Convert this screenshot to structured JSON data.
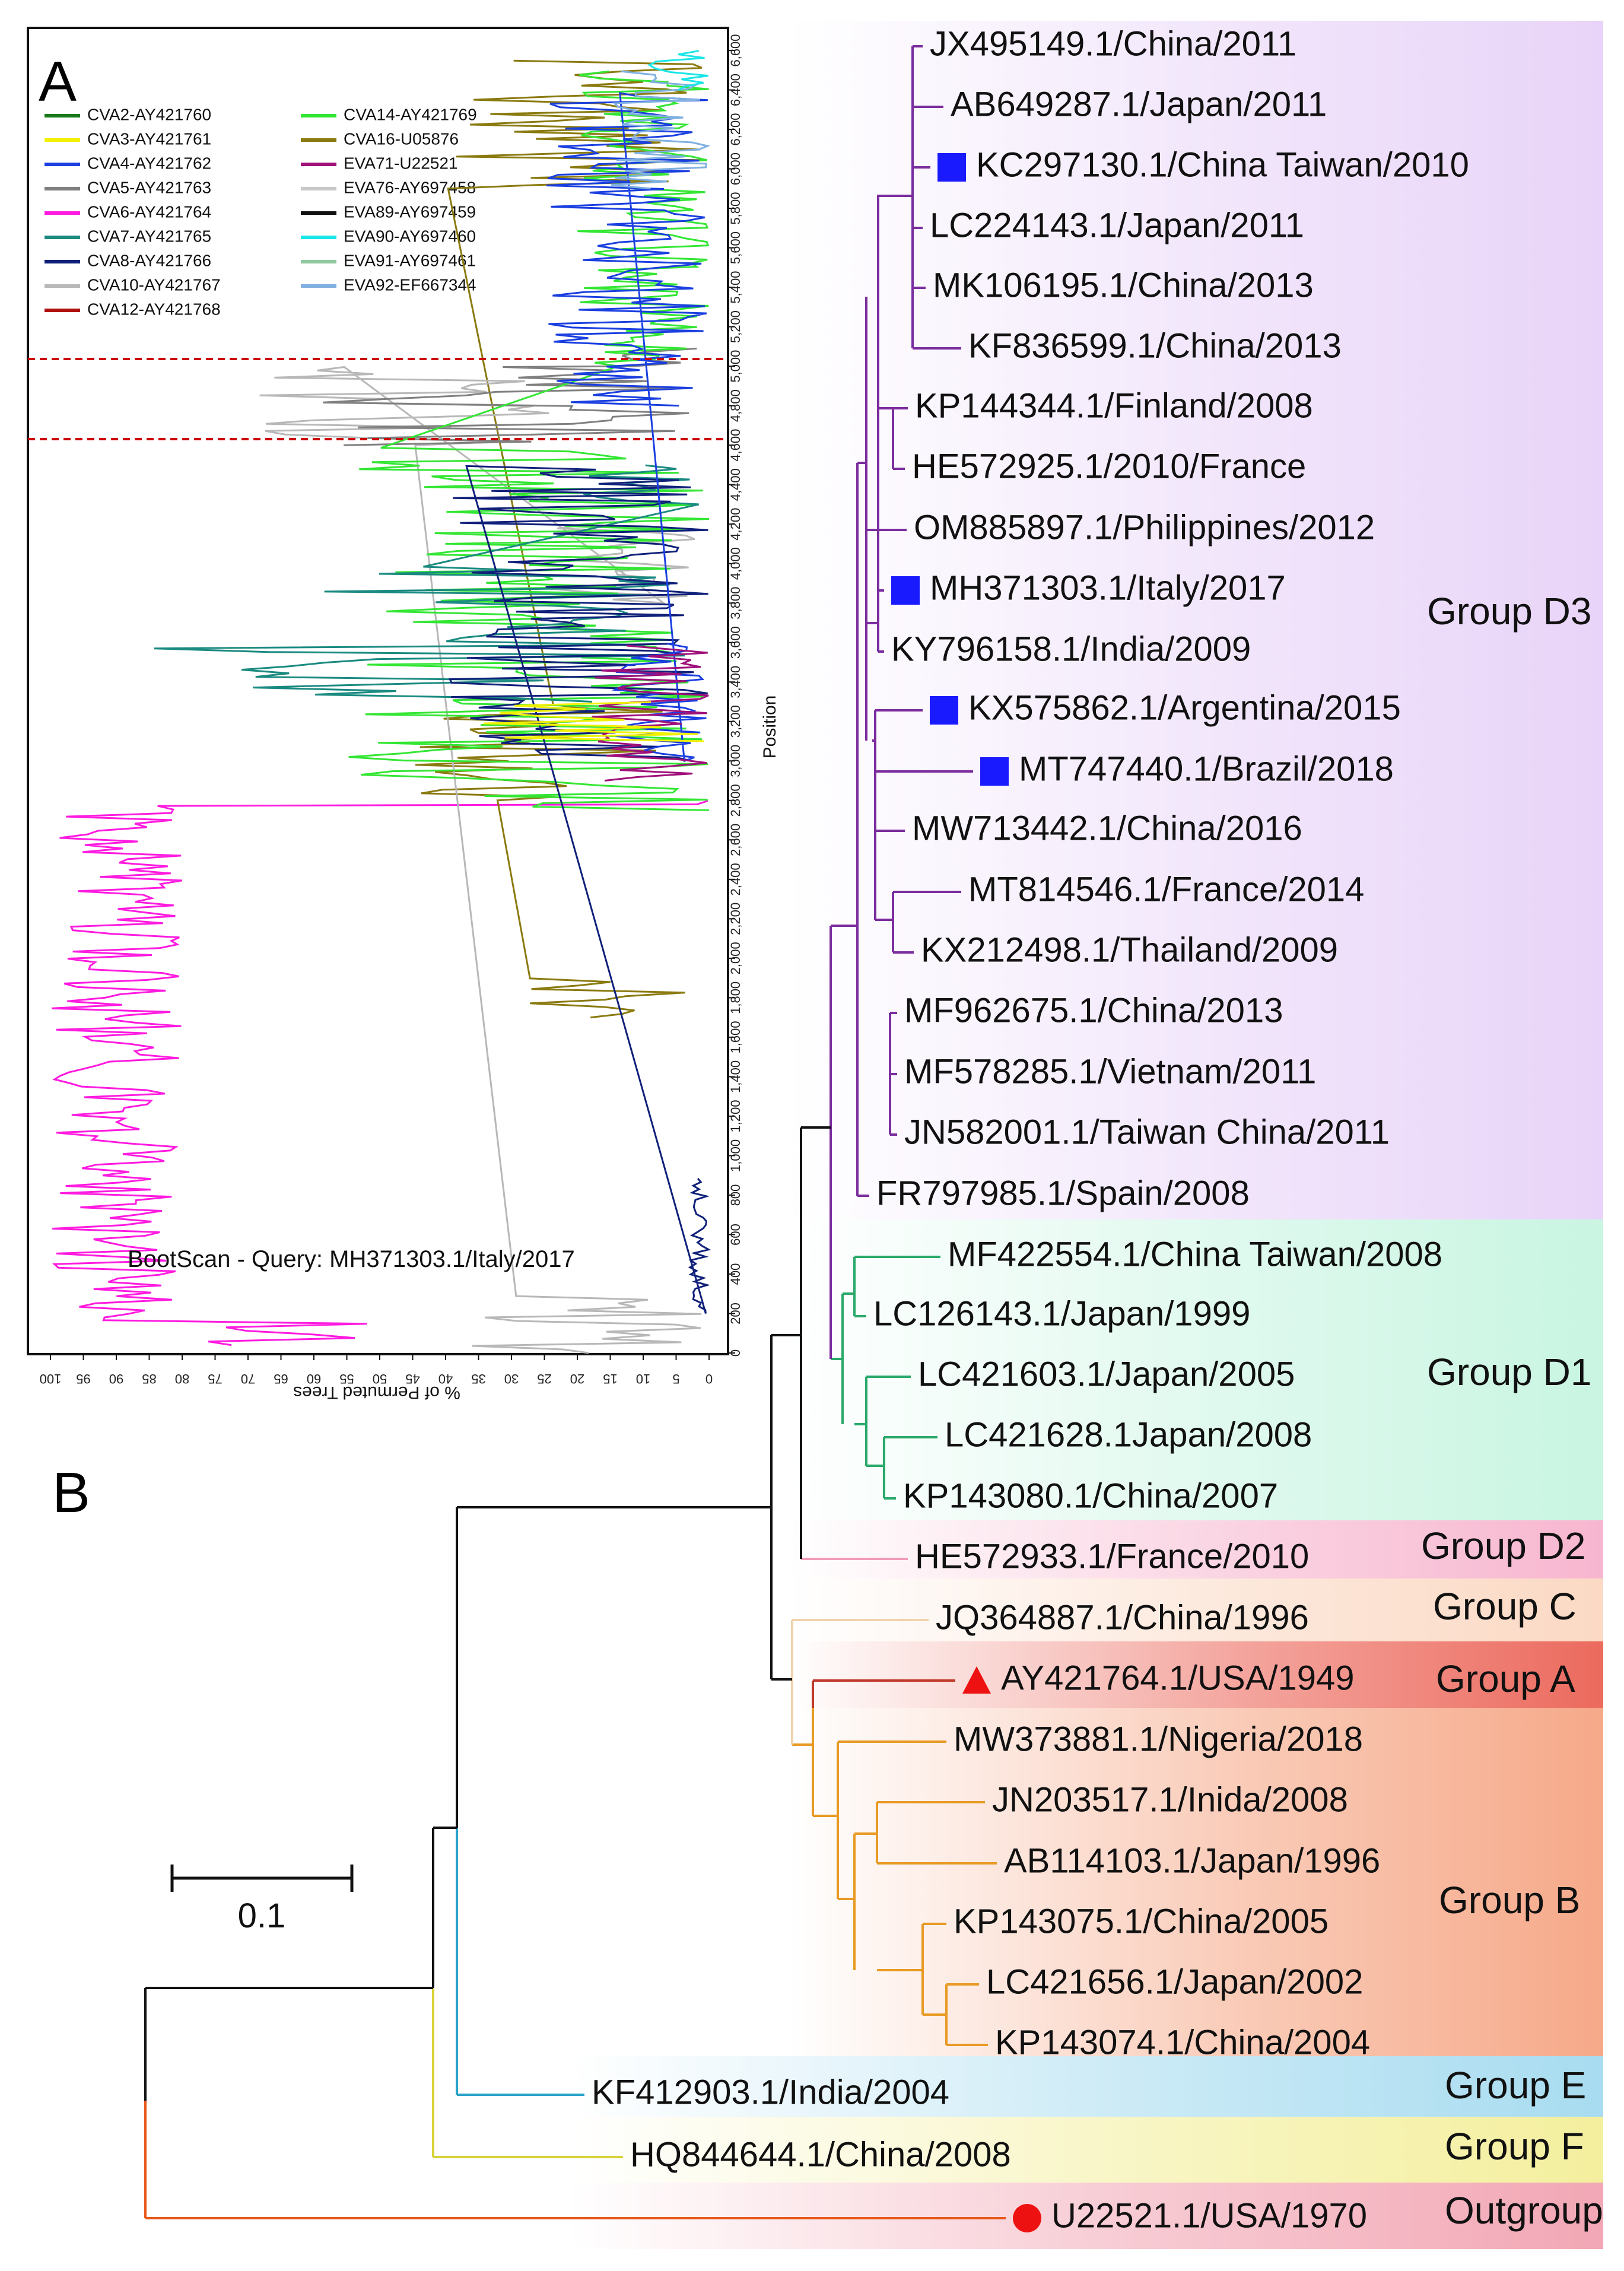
{
  "panel_b": {
    "letter": "B",
    "scale_bar": "0.1",
    "leaves": [
      {
        "id": "jx",
        "label": "JX495149.1/China/2011",
        "marker": ""
      },
      {
        "id": "ab6",
        "label": "AB649287.1/Japan/2011",
        "marker": ""
      },
      {
        "id": "kc2",
        "label": "KC297130.1/China Taiwan/2010",
        "marker": "square"
      },
      {
        "id": "lc2",
        "label": "LC224143.1/Japan/2011",
        "marker": ""
      },
      {
        "id": "mk1",
        "label": "MK106195.1/China/2013",
        "marker": ""
      },
      {
        "id": "kf8",
        "label": "KF836599.1/China/2013",
        "marker": ""
      },
      {
        "id": "kp1",
        "label": "KP144344.1/Finland/2008",
        "marker": ""
      },
      {
        "id": "he5",
        "label": "HE572925.1/2010/France",
        "marker": ""
      },
      {
        "id": "om8",
        "label": "OM885897.1/Philippines/2012",
        "marker": ""
      },
      {
        "id": "mh3",
        "label": "MH371303.1/Italy/2017",
        "marker": "square"
      },
      {
        "id": "ky7",
        "label": "KY796158.1/India/2009",
        "marker": ""
      },
      {
        "id": "kx5",
        "label": "KX575862.1/Argentina/2015",
        "marker": "square"
      },
      {
        "id": "mt7",
        "label": "MT747440.1/Brazil/2018",
        "marker": "square"
      },
      {
        "id": "mw7",
        "label": "MW713442.1/China/2016",
        "marker": ""
      },
      {
        "id": "mt8",
        "label": "MT814546.1/France/2014",
        "marker": ""
      },
      {
        "id": "kx2",
        "label": "KX212498.1/Thailand/2009",
        "marker": ""
      },
      {
        "id": "mf9",
        "label": "MF962675.1/China/2013",
        "marker": ""
      },
      {
        "id": "mf5",
        "label": "MF578285.1/Vietnam/2011",
        "marker": ""
      },
      {
        "id": "jn5",
        "label": "JN582001.1/Taiwan China/2011",
        "marker": ""
      },
      {
        "id": "fr7",
        "label": "FR797985.1/Spain/2008",
        "marker": ""
      },
      {
        "id": "mf4",
        "label": "MF422554.1/China Taiwan/2008",
        "marker": ""
      },
      {
        "id": "lc1",
        "label": "LC126143.1/Japan/1999",
        "marker": ""
      },
      {
        "id": "lc4a",
        "label": "LC421603.1/Japan/2005",
        "marker": ""
      },
      {
        "id": "lc4b",
        "label": "LC421628.1Japan/2008",
        "marker": ""
      },
      {
        "id": "kp0",
        "label": "KP143080.1/China/2007",
        "marker": ""
      },
      {
        "id": "he3",
        "label": "HE572933.1/France/2010",
        "marker": ""
      },
      {
        "id": "jq3",
        "label": "JQ364887.1/China/1996",
        "marker": ""
      },
      {
        "id": "ay4",
        "label": "AY421764.1/USA/1949",
        "marker": "triangle"
      },
      {
        "id": "mw3",
        "label": "MW373881.1/Nigeria/2018",
        "marker": ""
      },
      {
        "id": "jn2",
        "label": "JN203517.1/Inida/2008",
        "marker": ""
      },
      {
        "id": "ab1",
        "label": "AB114103.1/Japan/1996",
        "marker": ""
      },
      {
        "id": "kp5",
        "label": "KP143075.1/China/2005",
        "marker": ""
      },
      {
        "id": "lc6",
        "label": "LC421656.1/Japan/2002",
        "marker": ""
      },
      {
        "id": "kp4",
        "label": "KP143074.1/China/2004",
        "marker": ""
      },
      {
        "id": "kf4",
        "label": "KF412903.1/India/2004",
        "marker": ""
      },
      {
        "id": "hq8",
        "label": "HQ844644.1/China/2008",
        "marker": ""
      },
      {
        "id": "u22",
        "label": "U22521.1/USA/1970",
        "marker": "circle"
      }
    ],
    "groups": [
      {
        "id": "d3",
        "label": "Group D3",
        "color": "#e8d4f8"
      },
      {
        "id": "d1",
        "label": "Group D1",
        "color": "#c9f5e2"
      },
      {
        "id": "d2",
        "label": "Group D2",
        "color": "#f7b6cf"
      },
      {
        "id": "c",
        "label": "Group C",
        "color": "#fbd9c4"
      },
      {
        "id": "a",
        "label": "Group A",
        "color": "#ec6a5e"
      },
      {
        "id": "b",
        "label": "Group B",
        "color": "#f6a989"
      },
      {
        "id": "e",
        "label": "Group E",
        "color": "#a8dcf0"
      },
      {
        "id": "f",
        "label": "Group F",
        "color": "#f4ef9e"
      },
      {
        "id": "o",
        "label": "Outgroup",
        "color": "#f2a7b5"
      }
    ],
    "clade_colors": {
      "d3": "#7b2d9e",
      "d1": "#2aa96b",
      "d2": "#f29bb8",
      "c": "#f0d2ad",
      "a": "#c0392b",
      "b": "#e89a24",
      "e": "#2ba3c9",
      "f": "#d9d23a",
      "o": "#e8581a",
      "backbone": "#111111"
    },
    "marker_colors": {
      "square": "#1a1aff",
      "triangle": "#ee1111",
      "circle": "#ee1111"
    }
  },
  "panel_a": {
    "letter": "A",
    "x_axis_title": "% of Permuted Trees",
    "y_axis_title": "Position",
    "x_ticks": [
      "100",
      "95",
      "90",
      "85",
      "80",
      "75",
      "70",
      "65",
      "60",
      "55",
      "50",
      "45",
      "40",
      "35",
      "30",
      "25",
      "20",
      "15",
      "10",
      "5",
      "0"
    ],
    "y_ticks": [
      "0",
      "200",
      "400",
      "600",
      "800",
      "1,000",
      "1,200",
      "1,400",
      "1,600",
      "1,800",
      "2,000",
      "2,200",
      "2,400",
      "2,600",
      "2,800",
      "3,000",
      "3,200",
      "3,400",
      "3,600",
      "3,800",
      "4,000",
      "4,200",
      "4,400",
      "4,600",
      "4,800",
      "5,000",
      "5,200",
      "5,400",
      "5,600",
      "5,800",
      "6,000",
      "6,200",
      "6,400",
      "6,600"
    ],
    "query_label": "BootScan - Query: MH371303.1/Italy/2017",
    "legend": [
      {
        "name": "CVA2-AY421760",
        "color": "#1a7a1a"
      },
      {
        "name": "CVA3-AY421761",
        "color": "#f0f000"
      },
      {
        "name": "CVA4-AY421762",
        "color": "#1a3fe0"
      },
      {
        "name": "CVA5-AY421763",
        "color": "#808080"
      },
      {
        "name": "CVA6-AY421764",
        "color": "#ff1ae0"
      },
      {
        "name": "CVA7-AY421765",
        "color": "#1a8a80"
      },
      {
        "name": "CVA8-AY421766",
        "color": "#10207a"
      },
      {
        "name": "CVA10-AY421767",
        "color": "#b8b8b8"
      },
      {
        "name": "CVA12-AY421768",
        "color": "#b01010"
      },
      {
        "name": "CVA14-AY421769",
        "color": "#33e633"
      },
      {
        "name": "CVA16-U05876",
        "color": "#8a7a10"
      },
      {
        "name": "EVA71-U22521",
        "color": "#a0107a"
      },
      {
        "name": "EVA76-AY697458",
        "color": "#c8c8c8"
      },
      {
        "name": "EVA89-AY697459",
        "color": "#101010"
      },
      {
        "name": "EVA90-AY697460",
        "color": "#19e6e6"
      },
      {
        "name": "EVA91-AY697461",
        "color": "#90c8a0"
      },
      {
        "name": "EVA92-EF667344",
        "color": "#80b0e0"
      }
    ]
  }
}
